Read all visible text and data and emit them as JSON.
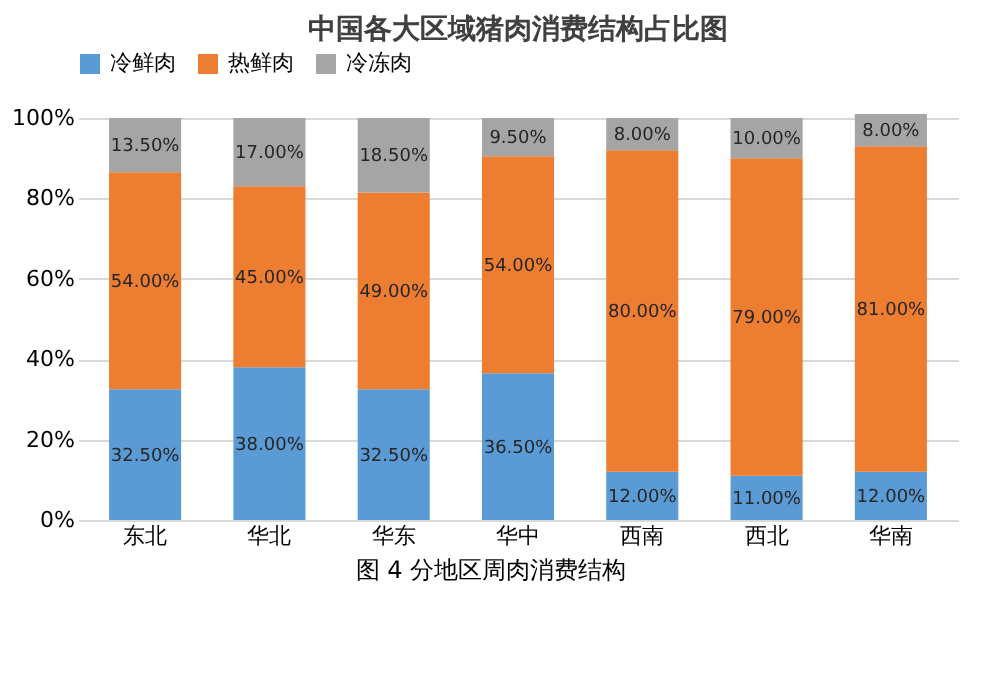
{
  "chart_data": {
    "type": "bar",
    "title": "中国各大区域猪肉消费结构占比图",
    "stacked": true,
    "categories": [
      "东北",
      "华北",
      "华东",
      "华中",
      "西南",
      "西北",
      "华南"
    ],
    "series": [
      {
        "name": "冷鲜肉",
        "color": "#5b9bd5",
        "values": [
          32.5,
          38,
          32.5,
          36.5,
          12,
          11,
          12
        ],
        "value_labels": [
          "32.50%",
          "38.00%",
          "32.50%",
          "36.50%",
          "12.00%",
          "11.00%",
          "12.00%"
        ]
      },
      {
        "name": "热鲜肉",
        "color": "#ed7d31",
        "values": [
          54,
          45,
          49,
          54,
          80,
          79,
          81
        ],
        "value_labels": [
          "54.00%",
          "45.00%",
          "49.00%",
          "54.00%",
          "80.00%",
          "79.00%",
          "81.00%"
        ]
      },
      {
        "name": "冷冻肉",
        "color": "#a5a5a5",
        "values": [
          13.5,
          17,
          18.5,
          9.5,
          8,
          10,
          8
        ],
        "value_labels": [
          "13.50%",
          "17.00%",
          "18.50%",
          "9.50%",
          "8.00%",
          "10.00%",
          "8.00%"
        ]
      }
    ],
    "ylim": [
      0,
      102
    ],
    "yticks": [
      {
        "value": 0,
        "label": "0%"
      },
      {
        "value": 20,
        "label": "20%"
      },
      {
        "value": 40,
        "label": "40%"
      },
      {
        "value": 60,
        "label": "60%"
      },
      {
        "value": 80,
        "label": "80%"
      },
      {
        "value": 100,
        "label": "100%"
      }
    ],
    "grid": "y",
    "legend": "top",
    "annotations": [
      "图 4 分地区周肉消费结构"
    ]
  }
}
